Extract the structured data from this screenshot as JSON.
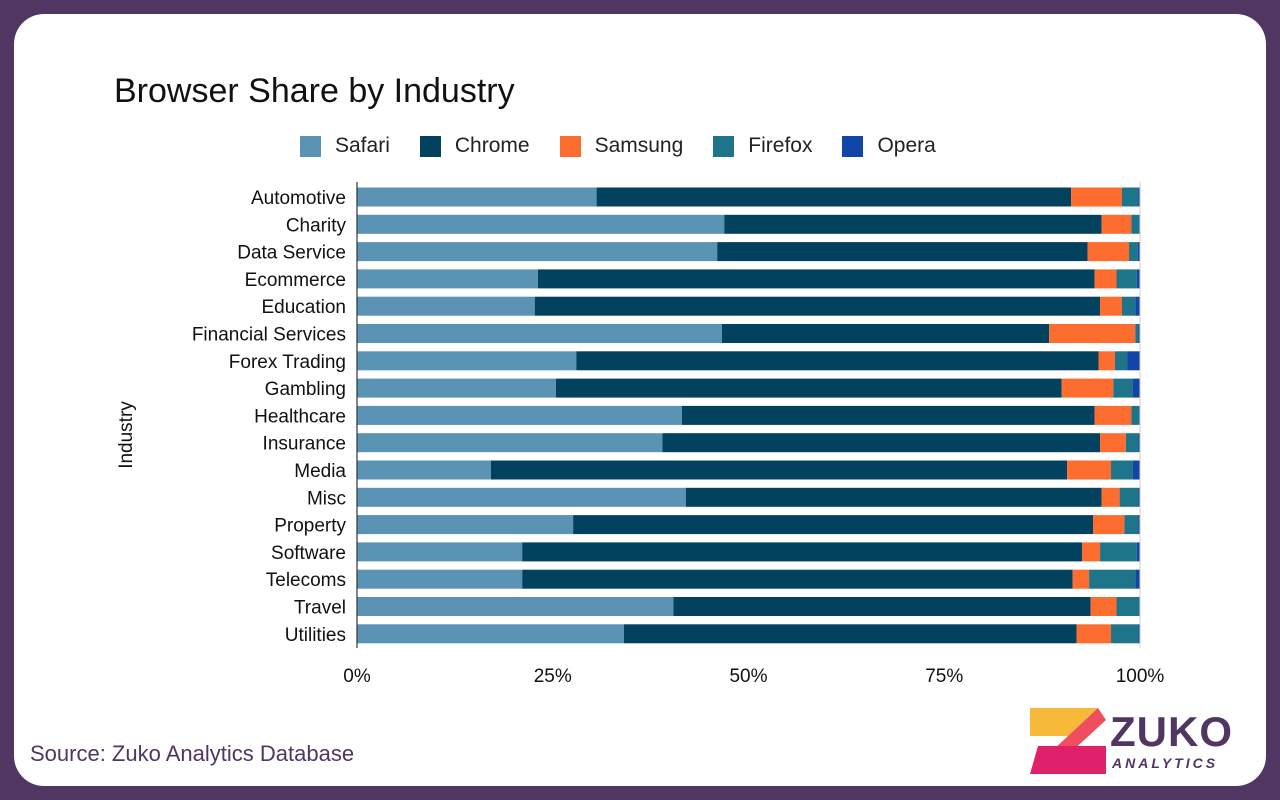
{
  "chart_data": {
    "type": "bar",
    "orientation": "horizontal",
    "stacked": true,
    "title": "Browser Share by Industry",
    "ylabel": "Industry",
    "xlabel": "",
    "xlim": [
      0,
      100
    ],
    "x_ticks": [
      "0%",
      "25%",
      "50%",
      "75%",
      "100%"
    ],
    "legend_position": "top",
    "grid": false,
    "categories": [
      "Automotive",
      "Charity",
      "Data Service",
      "Ecommerce",
      "Education",
      "Financial Services",
      "Forex Trading",
      "Gambling",
      "Healthcare",
      "Insurance",
      "Media",
      "Misc",
      "Property",
      "Software",
      "Telecoms",
      "Travel",
      "Utilities"
    ],
    "series": [
      {
        "name": "Safari",
        "color": "#5a93b3",
        "values": [
          30.6,
          46.9,
          46.0,
          23.1,
          22.7,
          46.6,
          28.0,
          25.4,
          41.5,
          39.0,
          17.1,
          42.0,
          27.6,
          21.1,
          21.1,
          40.4,
          34.1
        ]
      },
      {
        "name": "Chrome",
        "color": "#02425f",
        "values": [
          60.6,
          48.2,
          47.3,
          71.1,
          72.2,
          41.8,
          66.7,
          64.6,
          52.7,
          55.9,
          73.6,
          53.1,
          66.4,
          71.5,
          70.3,
          53.3,
          57.8
        ]
      },
      {
        "name": "Samsung",
        "color": "#fd6d30",
        "values": [
          6.5,
          3.8,
          5.3,
          2.8,
          2.8,
          11.0,
          2.1,
          6.6,
          4.7,
          3.3,
          5.6,
          2.3,
          4.0,
          2.3,
          2.1,
          3.3,
          4.4
        ]
      },
      {
        "name": "Firefox",
        "color": "#1e7488",
        "values": [
          2.1,
          1.1,
          1.1,
          2.6,
          1.7,
          0.4,
          1.6,
          2.5,
          1.1,
          1.6,
          2.8,
          2.4,
          1.8,
          4.7,
          5.9,
          3.0,
          3.5
        ]
      },
      {
        "name": "Opera",
        "color": "#1245a8",
        "values": [
          0.2,
          0.0,
          0.3,
          0.4,
          0.6,
          0.2,
          1.6,
          0.9,
          0.0,
          0.2,
          0.9,
          0.2,
          0.2,
          0.4,
          0.6,
          0.0,
          0.2
        ]
      }
    ]
  },
  "footer": {
    "source": "Source: Zuko Analytics Database"
  },
  "logo": {
    "name": "ZUKO",
    "sub": "ANALYTICS"
  }
}
